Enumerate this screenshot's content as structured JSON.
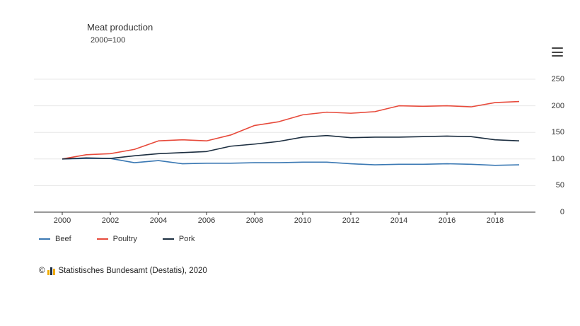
{
  "chart_data": {
    "type": "line",
    "title": "Meat production",
    "subtitle": "2000=100",
    "x": [
      2000,
      2001,
      2002,
      2003,
      2004,
      2005,
      2006,
      2007,
      2008,
      2009,
      2010,
      2011,
      2012,
      2013,
      2014,
      2015,
      2016,
      2017,
      2018,
      2019
    ],
    "series": [
      {
        "name": "Beef",
        "color": "#3a78b3",
        "values": [
          100,
          101,
          101,
          93,
          97,
          91,
          92,
          92,
          93,
          93,
          94,
          94,
          91,
          89,
          90,
          90,
          91,
          90,
          88,
          89
        ]
      },
      {
        "name": "Poultry",
        "color": "#e74a3b",
        "values": [
          100,
          108,
          110,
          118,
          134,
          136,
          134,
          145,
          163,
          170,
          183,
          188,
          186,
          189,
          200,
          199,
          200,
          198,
          206,
          208
        ]
      },
      {
        "name": "Pork",
        "color": "#1c2e40",
        "values": [
          100,
          102,
          101,
          106,
          110,
          112,
          114,
          124,
          128,
          133,
          141,
          144,
          140,
          141,
          141,
          142,
          143,
          142,
          136,
          134
        ]
      }
    ],
    "ylim": [
      0,
      250
    ],
    "y_ticks": [
      0,
      50,
      100,
      150,
      200,
      250
    ],
    "x_ticks": [
      2000,
      2002,
      2004,
      2006,
      2008,
      2010,
      2012,
      2014,
      2016,
      2018
    ],
    "grid": true,
    "legend_position": "bottom-left",
    "grid_color": "#e7e7e7",
    "axis_color": "#333333"
  },
  "footer": {
    "copyright": "©",
    "source": "Statistisches Bundesamt (Destatis), 2020"
  }
}
